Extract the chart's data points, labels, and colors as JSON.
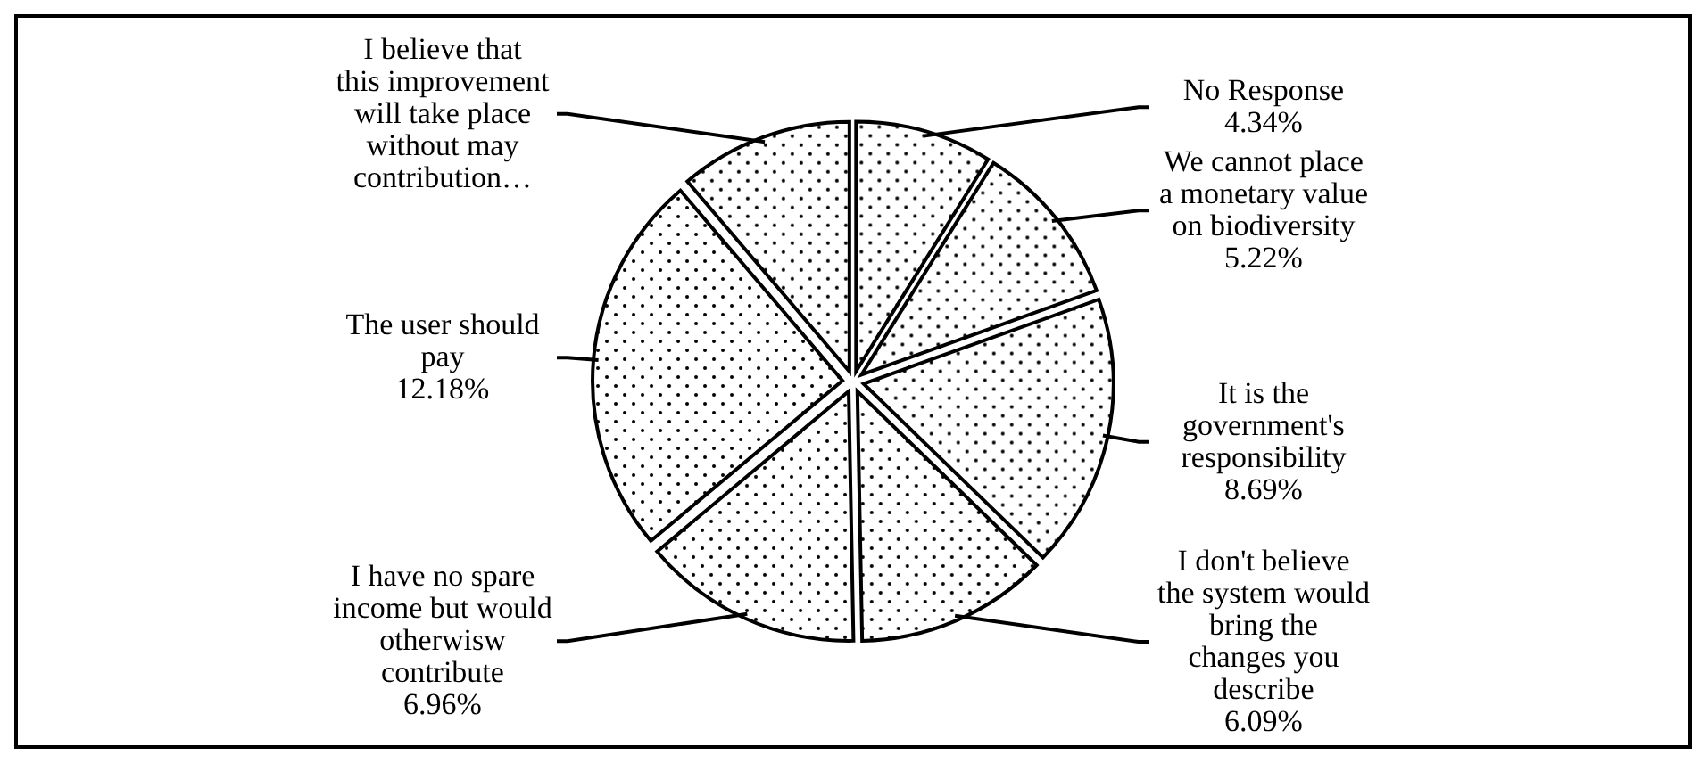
{
  "chart_data": {
    "type": "pie",
    "categories": [
      "No Response",
      "We cannot place a monetary value on biodiversity",
      "It is the government's responsibility",
      "I don't believe the system would bring the changes you describe",
      "I have no spare income but would otherwisw contribute",
      "The user should pay",
      "I believe that this improvement will take place without may contribution…"
    ],
    "values": [
      4.34,
      5.22,
      8.69,
      6.09,
      6.96,
      12.18,
      5.5
    ],
    "value_labels": [
      "4.34%",
      "5.22%",
      "8.69%",
      "6.09%",
      "6.96%",
      "12.18%",
      null
    ],
    "colors": [
      "#ffffff",
      "#ffffff",
      "#ffffff",
      "#ffffff",
      "#ffffff",
      "#ffffff",
      "#ffffff"
    ]
  }
}
